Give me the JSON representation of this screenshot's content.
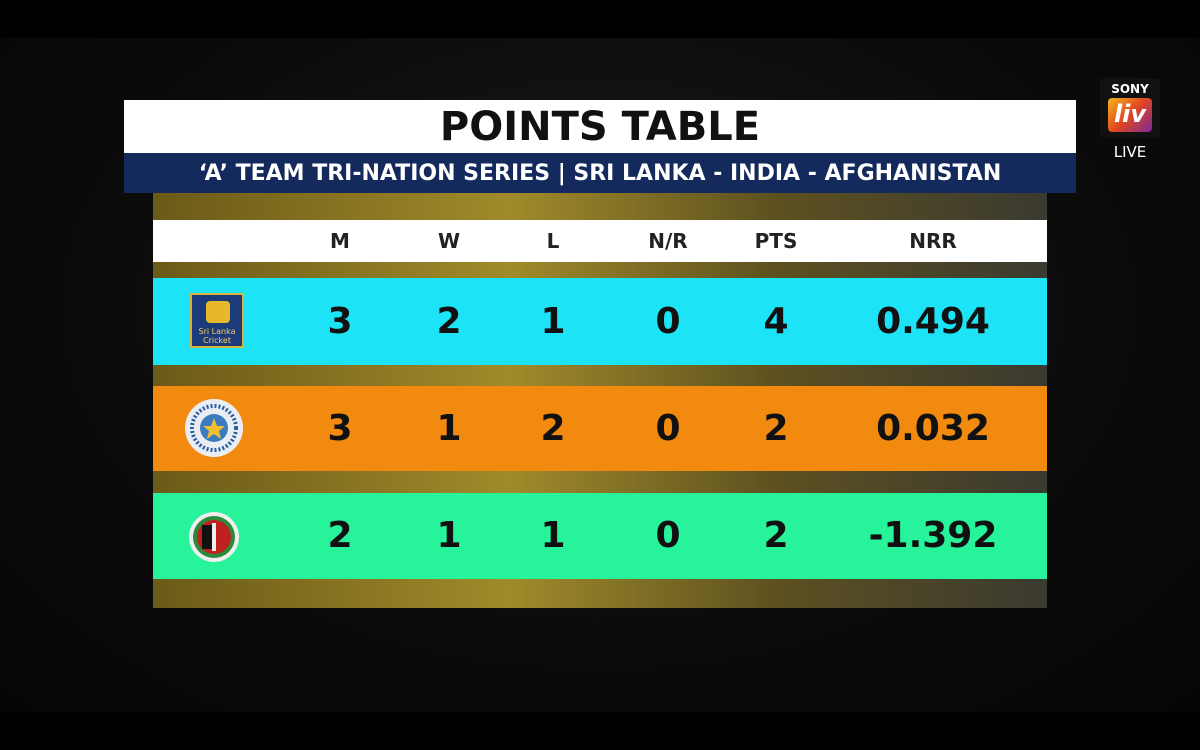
{
  "header": {
    "title": "POINTS TABLE",
    "subtitle": "‘A’ TEAM TRI-NATION SERIES | SRI LANKA - INDIA - AFGHANISTAN"
  },
  "broadcaster": {
    "brand": "SONY",
    "logo": "liv",
    "status": "LIVE"
  },
  "table": {
    "columns": [
      "M",
      "W",
      "L",
      "N/R",
      "PTS",
      "NRR"
    ],
    "rows": [
      {
        "logo_text": "Sri Lanka Cricket",
        "color": "#1de3f7",
        "cells": [
          3,
          2,
          1,
          0,
          4,
          0.494
        ]
      },
      {
        "color": "#f38a10",
        "cells": [
          3,
          1,
          2,
          0,
          2,
          0.032
        ]
      },
      {
        "color": "#27f39a",
        "cells": [
          2,
          1,
          1,
          0,
          2,
          -1.392
        ]
      }
    ]
  }
}
